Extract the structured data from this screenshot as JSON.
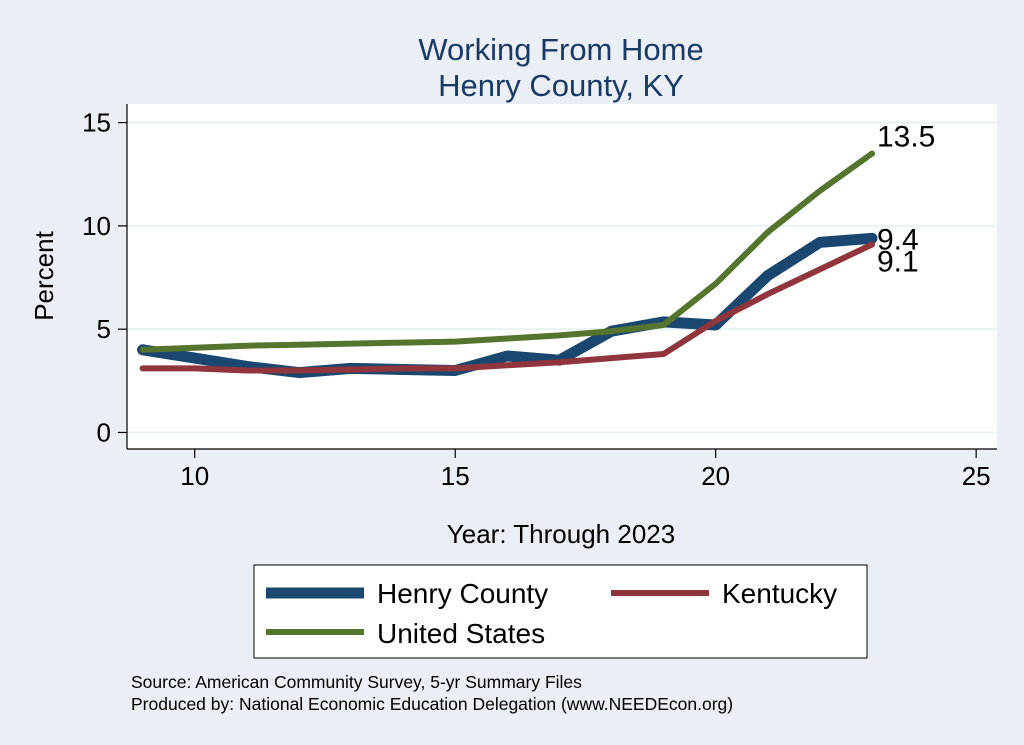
{
  "chart_data": {
    "type": "line",
    "title": "Working From Home",
    "subtitle": "Henry County, KY",
    "xlabel": "Year: Through 2023",
    "ylabel": "Percent",
    "xlim": [
      8.7,
      25.4
    ],
    "ylim": [
      -0.8,
      15.9
    ],
    "xticks": [
      10,
      15,
      20,
      25
    ],
    "yticks": [
      0,
      5,
      10,
      15
    ],
    "grid": true,
    "legend_position": "bottom",
    "series": [
      {
        "name": "Henry County",
        "color": "#1a476f",
        "x": [
          9,
          10,
          11,
          12,
          13,
          14,
          15,
          16,
          17,
          18,
          19,
          20,
          21,
          22,
          23
        ],
        "values": [
          4.0,
          3.6,
          3.2,
          2.9,
          3.1,
          3.05,
          3.0,
          3.7,
          3.5,
          4.9,
          5.35,
          5.2,
          7.6,
          9.2,
          9.4
        ]
      },
      {
        "name": "Kentucky",
        "color": "#90353b",
        "x": [
          9,
          10,
          11,
          12,
          13,
          14,
          15,
          16,
          17,
          18,
          19,
          20,
          21,
          22,
          23
        ],
        "values": [
          3.1,
          3.1,
          3.0,
          3.0,
          3.05,
          3.1,
          3.1,
          3.25,
          3.4,
          3.6,
          3.8,
          5.4,
          6.7,
          7.9,
          9.1
        ]
      },
      {
        "name": "United States",
        "color": "#55752f",
        "x": [
          9,
          10,
          11,
          12,
          13,
          14,
          15,
          16,
          17,
          18,
          19,
          20,
          21,
          22,
          23
        ],
        "values": [
          4.0,
          4.1,
          4.2,
          4.25,
          4.3,
          4.35,
          4.4,
          4.55,
          4.7,
          4.9,
          5.2,
          7.2,
          9.7,
          11.7,
          13.5
        ]
      }
    ],
    "end_labels": [
      {
        "text": "13.5",
        "value": 13.5,
        "series": 2
      },
      {
        "text": "9.4",
        "value": 9.4,
        "series": 0
      },
      {
        "text": "9.1",
        "value": 9.1,
        "series": 1
      }
    ],
    "notes": [
      "Source: American Community Survey, 5-yr Summary Files",
      "Produced by: National Economic Education Delegation (www.NEEDEcon.org)"
    ]
  }
}
